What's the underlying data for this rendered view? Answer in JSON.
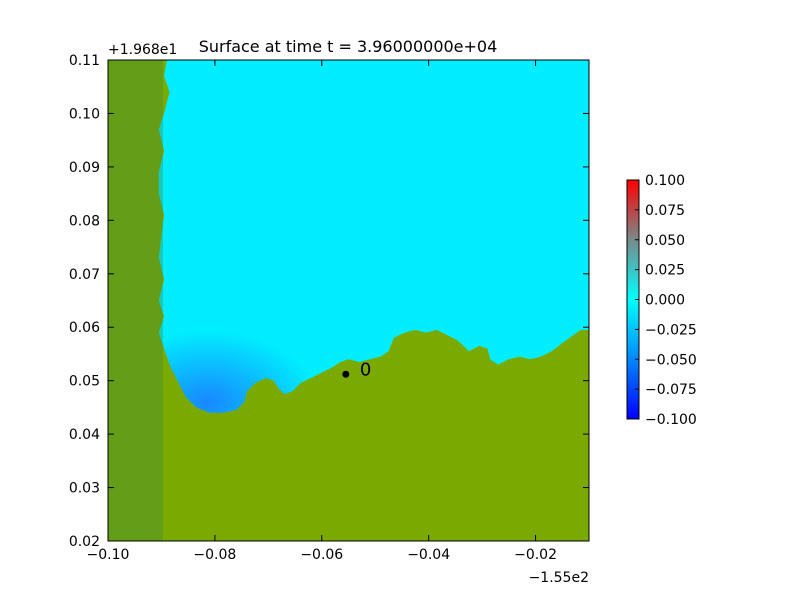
{
  "chart_data": {
    "type": "heatmap",
    "title": "Surface at time t = 3.96000000e+04",
    "xlabel": "",
    "ylabel": "",
    "x_offset_label": "−1.55e2",
    "y_offset_label": "+1.968e1",
    "xlim": [
      -0.1,
      -0.01
    ],
    "ylim": [
      0.02,
      0.11
    ],
    "x_ticks": [
      {
        "value": -0.1,
        "label": "−0.10"
      },
      {
        "value": -0.08,
        "label": "−0.08"
      },
      {
        "value": -0.06,
        "label": "−0.06"
      },
      {
        "value": -0.04,
        "label": "−0.04"
      },
      {
        "value": -0.02,
        "label": "−0.02"
      }
    ],
    "y_ticks": [
      {
        "value": 0.02,
        "label": "0.02"
      },
      {
        "value": 0.03,
        "label": "0.03"
      },
      {
        "value": 0.04,
        "label": "0.04"
      },
      {
        "value": 0.05,
        "label": "0.05"
      },
      {
        "value": 0.06,
        "label": "0.06"
      },
      {
        "value": 0.07,
        "label": "0.07"
      },
      {
        "value": 0.08,
        "label": "0.08"
      },
      {
        "value": 0.09,
        "label": "0.09"
      },
      {
        "value": 0.1,
        "label": "0.10"
      },
      {
        "value": 0.11,
        "label": "0.11"
      }
    ],
    "colorbar": {
      "range": [
        -0.1,
        0.1
      ],
      "colors": [
        "#0000ff",
        "#0088ff",
        "#00ffff",
        "#7a8a8a",
        "#ff0000"
      ],
      "ticks": [
        {
          "value": 0.1,
          "label": "0.100"
        },
        {
          "value": 0.075,
          "label": "0.075"
        },
        {
          "value": 0.05,
          "label": "0.050"
        },
        {
          "value": 0.025,
          "label": "0.025"
        },
        {
          "value": 0.0,
          "label": "0.000"
        },
        {
          "value": -0.025,
          "label": "−0.025"
        },
        {
          "value": -0.05,
          "label": "−0.050"
        },
        {
          "value": -0.075,
          "label": "−0.075"
        },
        {
          "value": -0.1,
          "label": "−0.100"
        }
      ]
    },
    "gauge": {
      "x": -0.0555,
      "y": 0.0512,
      "label": "0"
    },
    "colors": {
      "water": "#00eeff",
      "deep_water": "#1a7cff",
      "land": "#7aaa00",
      "land_dark": "#3d8a44"
    },
    "land_polygons": [
      [
        [
          -0.1,
          0.02
        ],
        [
          -0.1,
          0.11
        ],
        [
          -0.089,
          0.11
        ],
        [
          -0.0895,
          0.107
        ],
        [
          -0.0885,
          0.104
        ],
        [
          -0.0895,
          0.1
        ],
        [
          -0.0905,
          0.097
        ],
        [
          -0.0895,
          0.093
        ],
        [
          -0.0905,
          0.089
        ],
        [
          -0.0905,
          0.085
        ],
        [
          -0.0895,
          0.081
        ],
        [
          -0.09,
          0.077
        ],
        [
          -0.0905,
          0.073
        ],
        [
          -0.0895,
          0.069
        ],
        [
          -0.0905,
          0.065
        ],
        [
          -0.0895,
          0.062
        ],
        [
          -0.0905,
          0.059
        ],
        [
          -0.0895,
          0.056
        ],
        [
          -0.0885,
          0.053
        ],
        [
          -0.087,
          0.05
        ],
        [
          -0.0855,
          0.047
        ],
        [
          -0.0835,
          0.045
        ],
        [
          -0.081,
          0.044
        ],
        [
          -0.0785,
          0.044
        ],
        [
          -0.076,
          0.0445
        ],
        [
          -0.0745,
          0.046
        ],
        [
          -0.074,
          0.048
        ],
        [
          -0.0725,
          0.0495
        ],
        [
          -0.0705,
          0.0505
        ],
        [
          -0.069,
          0.05
        ],
        [
          -0.068,
          0.0485
        ],
        [
          -0.067,
          0.0475
        ],
        [
          -0.0655,
          0.048
        ],
        [
          -0.064,
          0.0495
        ],
        [
          -0.062,
          0.0505
        ],
        [
          -0.06,
          0.0515
        ],
        [
          -0.058,
          0.0525
        ],
        [
          -0.0565,
          0.0535
        ],
        [
          -0.055,
          0.054
        ],
        [
          -0.053,
          0.0535
        ],
        [
          -0.051,
          0.054
        ],
        [
          -0.049,
          0.0545
        ],
        [
          -0.0475,
          0.0555
        ],
        [
          -0.0465,
          0.058
        ],
        [
          -0.0445,
          0.059
        ],
        [
          -0.0425,
          0.0595
        ],
        [
          -0.0405,
          0.059
        ],
        [
          -0.0385,
          0.0595
        ],
        [
          -0.0365,
          0.0585
        ],
        [
          -0.0345,
          0.0575
        ],
        [
          -0.0335,
          0.0565
        ],
        [
          -0.0325,
          0.0555
        ],
        [
          -0.0305,
          0.0565
        ],
        [
          -0.029,
          0.056
        ],
        [
          -0.0285,
          0.054
        ],
        [
          -0.027,
          0.053
        ],
        [
          -0.025,
          0.054
        ],
        [
          -0.023,
          0.0545
        ],
        [
          -0.021,
          0.054
        ],
        [
          -0.019,
          0.0545
        ],
        [
          -0.017,
          0.0555
        ],
        [
          -0.015,
          0.057
        ],
        [
          -0.013,
          0.0585
        ],
        [
          -0.0115,
          0.0595
        ],
        [
          -0.01,
          0.0595
        ],
        [
          -0.01,
          0.02
        ]
      ]
    ]
  }
}
